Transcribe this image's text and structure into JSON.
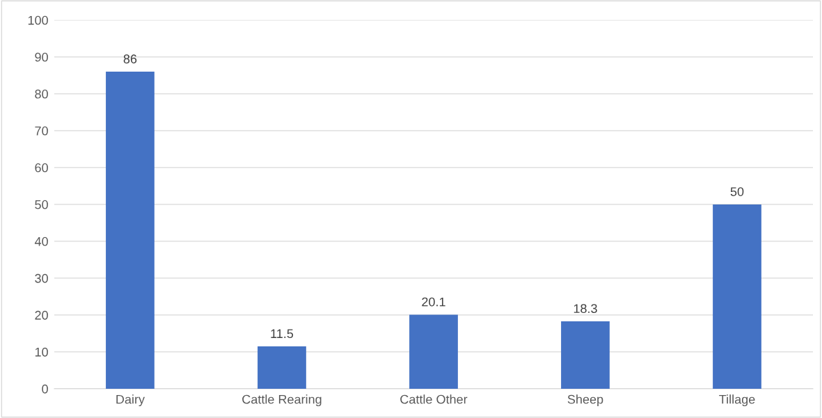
{
  "chart_data": {
    "type": "bar",
    "categories": [
      "Dairy",
      "Cattle Rearing",
      "Cattle Other",
      "Sheep",
      "Tillage"
    ],
    "values": [
      86,
      11.5,
      20.1,
      18.3,
      50
    ],
    "color": "#4472c4",
    "ylim": [
      0,
      100
    ],
    "yticks": [
      0,
      10,
      20,
      30,
      40,
      50,
      60,
      70,
      80,
      90,
      100
    ],
    "grid": "y",
    "data_labels": true
  }
}
